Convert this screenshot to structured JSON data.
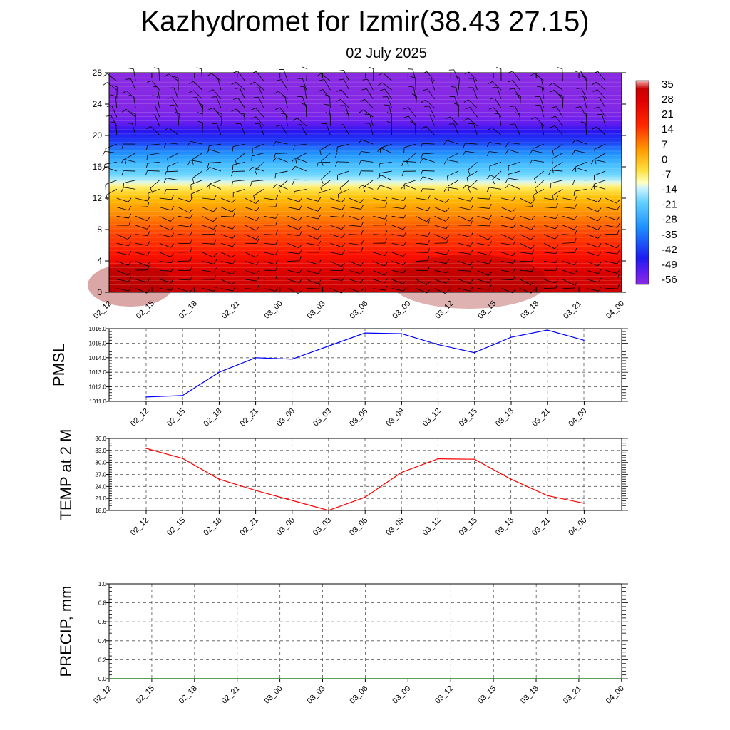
{
  "title": "Kazhydromet for Izmir(38.43 27.15)",
  "subtitle": "02 July 2025",
  "colors": {
    "pmsl_line": "#0000ff",
    "temp_line": "#ff0000",
    "precip_line": "#006400",
    "grid": "#555555"
  },
  "chart_data": [
    {
      "type": "heatmap",
      "id": "cross_section",
      "title": "",
      "x_tick_labels": [
        "02_12",
        "02_15",
        "02_18",
        "02_21",
        "03_00",
        "03_03",
        "03_06",
        "03_09",
        "03_12",
        "03_15",
        "03_18",
        "03_21",
        "04_00"
      ],
      "y_ticks": [
        0,
        4,
        8,
        12,
        16,
        20,
        24,
        28
      ],
      "ylim": [
        0,
        28
      ],
      "colorbar_labels": [
        "35",
        "28",
        "21",
        "14",
        "7",
        "0",
        "-7",
        "-14",
        "-21",
        "-28",
        "-35",
        "-42",
        "-49",
        "-56"
      ],
      "colorbar_range": [
        -60,
        38
      ],
      "temperature_profile": {
        "heights": [
          0,
          2,
          4,
          6,
          8,
          10,
          12,
          13.5,
          14.5,
          16,
          18,
          20,
          21.5,
          22.5,
          23.5,
          28
        ],
        "values": [
          33,
          30,
          24,
          18,
          13,
          7,
          0,
          -9,
          -18,
          -27,
          -36,
          -46,
          -55,
          -58,
          -59,
          -60
        ]
      },
      "wind_barbs": true
    },
    {
      "type": "line",
      "id": "pmsl",
      "ylabel": "PMSL",
      "x": [
        "02_12",
        "02_15",
        "02_18",
        "02_21",
        "03_00",
        "03_03",
        "03_06",
        "03_09",
        "03_12",
        "03_15",
        "03_18",
        "03_21",
        "04_00"
      ],
      "y_tick_labels": [
        "1011.0",
        "1012.0",
        "1013.0",
        "1014.0",
        "1015.0",
        "1016.0"
      ],
      "ylim": [
        1011.0,
        1016.0
      ],
      "grid": true,
      "series": [
        {
          "values": [
            1011.3,
            1011.4,
            1013.0,
            1014.0,
            1013.9,
            1014.8,
            1015.7,
            1015.65,
            1014.9,
            1014.35,
            1015.4,
            1015.9,
            1015.2
          ]
        }
      ]
    },
    {
      "type": "line",
      "id": "temp",
      "ylabel": "TEMP at 2 M",
      "x": [
        "02_12",
        "02_15",
        "02_18",
        "02_21",
        "03_00",
        "03_03",
        "03_06",
        "03_09",
        "03_12",
        "03_15",
        "03_18",
        "03_21",
        "04_00"
      ],
      "y_tick_labels": [
        "18.0",
        "21.0",
        "24.0",
        "27.0",
        "30.0",
        "33.0",
        "36.0"
      ],
      "ylim": [
        18.0,
        36.0
      ],
      "grid": true,
      "series": [
        {
          "values": [
            33.5,
            31.0,
            25.8,
            23.0,
            20.5,
            18.0,
            21.3,
            27.5,
            30.9,
            30.8,
            25.8,
            21.7,
            19.8
          ]
        }
      ]
    },
    {
      "type": "line",
      "id": "precip",
      "ylabel": "PRECIP, mm",
      "x": [
        "02_12",
        "02_15",
        "02_18",
        "02_21",
        "03_00",
        "03_03",
        "03_06",
        "03_09",
        "03_12",
        "03_15",
        "03_18",
        "03_21",
        "04_00"
      ],
      "y_tick_labels": [
        "0.0",
        "0.2",
        "0.4",
        "0.6",
        "0.8",
        "1.0"
      ],
      "ylim": [
        0.0,
        1.0
      ],
      "grid": true,
      "series": [
        {
          "values": [
            0,
            0,
            0,
            0,
            0,
            0,
            0,
            0,
            0,
            0,
            0,
            0,
            0
          ]
        }
      ]
    }
  ]
}
